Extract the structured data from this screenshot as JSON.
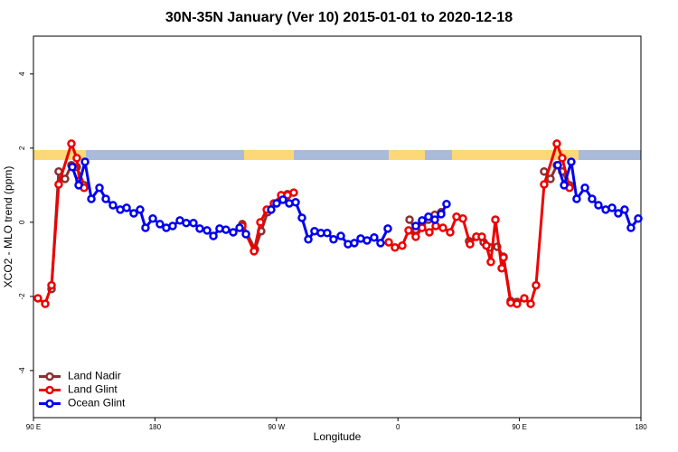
{
  "chart_data": {
    "type": "line",
    "title": "30N-35N January (Ver 10)   2015-01-01 to 2020-12-18",
    "xlabel": "Longitude",
    "ylabel": "XCO2 - MLO trend (ppm)",
    "xlim": [
      90,
      540
    ],
    "ylim": [
      -5.27,
      5.02
    ],
    "xticks": [
      {
        "value": 90,
        "label": "90 E"
      },
      {
        "value": 180,
        "label": "180"
      },
      {
        "value": 270,
        "label": "90 W"
      },
      {
        "value": 360,
        "label": "0"
      },
      {
        "value": 450,
        "label": "90 E"
      },
      {
        "value": 540,
        "label": "180"
      }
    ],
    "yticks": [
      -4,
      -2,
      0,
      2,
      4
    ],
    "legend": "bottomleft",
    "series": [
      {
        "name": "Land Nadir",
        "color": "#8b3030",
        "x": [
          103.4,
          108.7,
          113.4,
          118.1,
          122.1,
          127.5,
          null,
          244.7,
          254.1,
          258.7,
          263.4,
          273.5,
          278.2,
          null,
          368.6,
          373.2,
          377.9,
          382.6,
          387.3,
          392,
          null,
          412.7,
          418.1,
          423.5,
          428.1,
          433.5,
          438.2,
          443.5,
          448.2,
          null,
          468.3,
          473,
          477.7,
          481.7,
          487.1
        ],
        "values": [
          -1.8,
          1.37,
          1.17,
          1.54,
          1.49,
          1.0,
          null,
          -0.05,
          -0.73,
          -0.24,
          0.27,
          0.61,
          0.76,
          null,
          0.07,
          -0.2,
          -0.02,
          0.07,
          0.2,
          0.27,
          null,
          -0.51,
          -0.39,
          -0.54,
          -0.68,
          -0.66,
          -0.93,
          -2.12,
          -2.15,
          null,
          1.37,
          1.17,
          1.54,
          1.37,
          1.0
        ]
      },
      {
        "name": "Land Glint",
        "color": "#ee0000",
        "x": [
          93.3,
          98.7,
          103.4,
          108.7,
          118.1,
          122.1,
          124.1,
          127.5,
          null,
          244.7,
          253.4,
          258.1,
          262.8,
          268.1,
          273.5,
          278.2,
          282.8,
          null,
          353.2,
          357.8,
          363.2,
          367.9,
          373.2,
          377.9,
          383.3,
          388,
          393.3,
          398.7,
          403.4,
          408.1,
          413.4,
          418.1,
          422.1,
          425.5,
          428.8,
          432.2,
          436.9,
          438.2,
          443.5,
          448.2,
          453.6,
          458.3,
          462.3,
          468.3,
          477.7,
          481.7,
          487.1
        ],
        "values": [
          -2.05,
          -2.2,
          -1.7,
          1.02,
          2.12,
          1.73,
          1.12,
          0.93,
          null,
          -0.1,
          -0.78,
          0.0,
          0.34,
          0.51,
          0.73,
          0.73,
          0.8,
          null,
          -0.54,
          -0.68,
          -0.63,
          -0.22,
          -0.39,
          -0.15,
          -0.27,
          -0.1,
          -0.15,
          -0.27,
          0.15,
          0.1,
          -0.59,
          -0.39,
          -0.39,
          -0.63,
          -1.07,
          0.07,
          -1.24,
          -0.95,
          -2.17,
          -2.2,
          -2.05,
          -2.2,
          -1.7,
          1.02,
          2.12,
          1.73,
          0.93
        ]
      },
      {
        "name": "Ocean Glint",
        "color": "#0000ee",
        "x": [
          118.8,
          123.5,
          128.2,
          132.9,
          138.9,
          143.6,
          148.9,
          154.3,
          159,
          164.3,
          169,
          173,
          178.4,
          183.7,
          188.4,
          193.1,
          198.5,
          203.2,
          208.5,
          213.2,
          218.6,
          223.3,
          227.9,
          232.6,
          238,
          242.7,
          247.4,
          null,
          266.1,
          270.1,
          274.8,
          279.5,
          284.2,
          288.9,
          293.6,
          298.2,
          302.9,
          307.6,
          312.3,
          317.7,
          323,
          327.7,
          332.4,
          337.1,
          342.4,
          347.1,
          352.5,
          null,
          373.2,
          377.9,
          382.6,
          387.3,
          392,
          396,
          null,
          478.4,
          483.1,
          488.4,
          492.4,
          498.5,
          503.8,
          508.5,
          513.9,
          518.6,
          523.2,
          527.9,
          532.6,
          538
        ],
        "values": [
          1.49,
          1.0,
          1.63,
          0.63,
          0.93,
          0.63,
          0.46,
          0.34,
          0.39,
          0.24,
          0.34,
          -0.15,
          0.1,
          -0.05,
          -0.15,
          -0.1,
          0.05,
          -0.02,
          -0.02,
          -0.17,
          -0.22,
          -0.37,
          -0.17,
          -0.2,
          -0.27,
          -0.15,
          -0.32,
          null,
          0.34,
          0.51,
          0.61,
          0.51,
          0.54,
          0.12,
          -0.46,
          -0.24,
          -0.29,
          -0.29,
          -0.46,
          -0.37,
          -0.59,
          -0.56,
          -0.44,
          -0.49,
          -0.41,
          -0.56,
          -0.17,
          null,
          -0.1,
          0.05,
          0.15,
          0.07,
          0.22,
          0.49,
          null,
          1.54,
          1.0,
          1.63,
          0.63,
          0.93,
          0.63,
          0.46,
          0.34,
          0.39,
          0.24,
          0.34,
          -0.15,
          0.1
        ]
      }
    ]
  }
}
